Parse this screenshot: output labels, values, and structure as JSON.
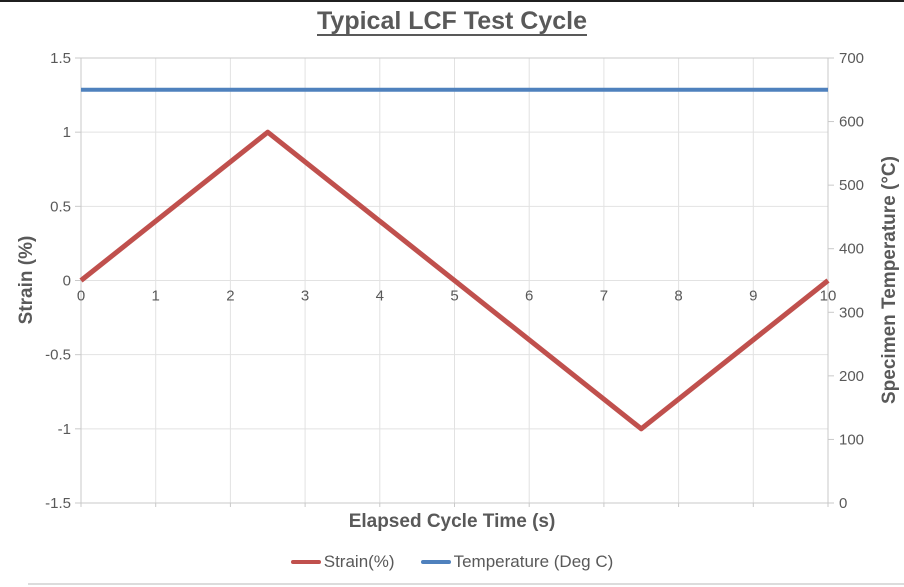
{
  "chart_data": {
    "type": "line",
    "title": "Typical LCF Test Cycle",
    "x_axis": {
      "label": "Elapsed Cycle Time (s)",
      "min": 0,
      "max": 10,
      "ticks": [
        0,
        1,
        2,
        3,
        4,
        5,
        6,
        7,
        8,
        9,
        10
      ]
    },
    "y_left_axis": {
      "label": "Strain (%)",
      "min": -1.5,
      "max": 1.5,
      "ticks": [
        1.5,
        1,
        0.5,
        0,
        -0.5,
        -1,
        -1.5
      ]
    },
    "y_right_axis": {
      "label": "Specimen Temperature (°C)",
      "min": 0,
      "max": 700,
      "ticks": [
        700,
        600,
        500,
        400,
        300,
        200,
        100,
        0
      ]
    },
    "series": [
      {
        "name": "Strain(%)",
        "axis": "left",
        "color": "#C0504D",
        "stroke_width": 5,
        "points": [
          [
            0,
            0
          ],
          [
            2.5,
            1
          ],
          [
            7.5,
            -1
          ],
          [
            10,
            0
          ]
        ]
      },
      {
        "name": "Temperature (Deg C)",
        "axis": "right",
        "color": "#4F81BD",
        "stroke_width": 4,
        "points": [
          [
            0,
            650
          ],
          [
            10,
            650
          ]
        ]
      }
    ],
    "legend": [
      {
        "label": "Strain(%)",
        "color": "#C0504D"
      },
      {
        "label": "Temperature (Deg C)",
        "color": "#4F81BD"
      }
    ],
    "legend_position": "bottom",
    "grid": true,
    "colors": {
      "grid": "#E2E2E2",
      "border": "#C9C9C9",
      "text": "#595959"
    }
  }
}
